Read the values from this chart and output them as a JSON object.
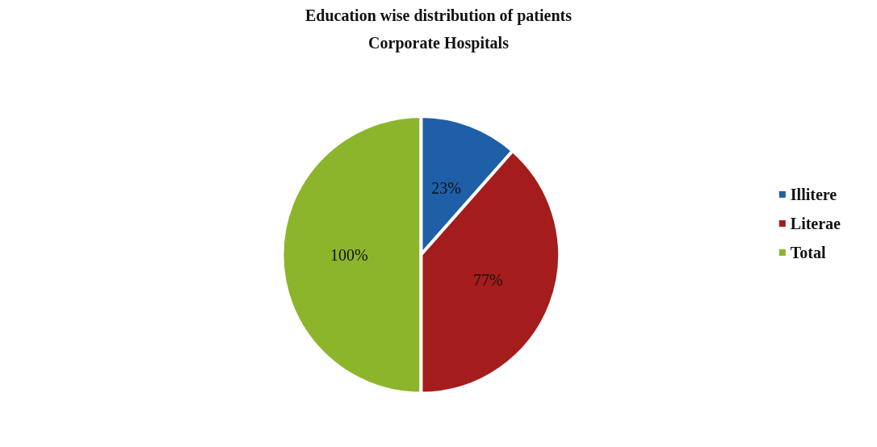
{
  "chart_data": {
    "type": "pie",
    "title": "Education wise distribution of patients",
    "subtitle": "Corporate Hospitals",
    "categories": [
      "Illitere",
      "Literae",
      "Total"
    ],
    "values": [
      23,
      77,
      100
    ],
    "colors": [
      "#1f5fa8",
      "#a51c1c",
      "#8db52c"
    ],
    "value_labels": [
      "23%",
      "77%",
      "100%"
    ],
    "legend": "right"
  }
}
